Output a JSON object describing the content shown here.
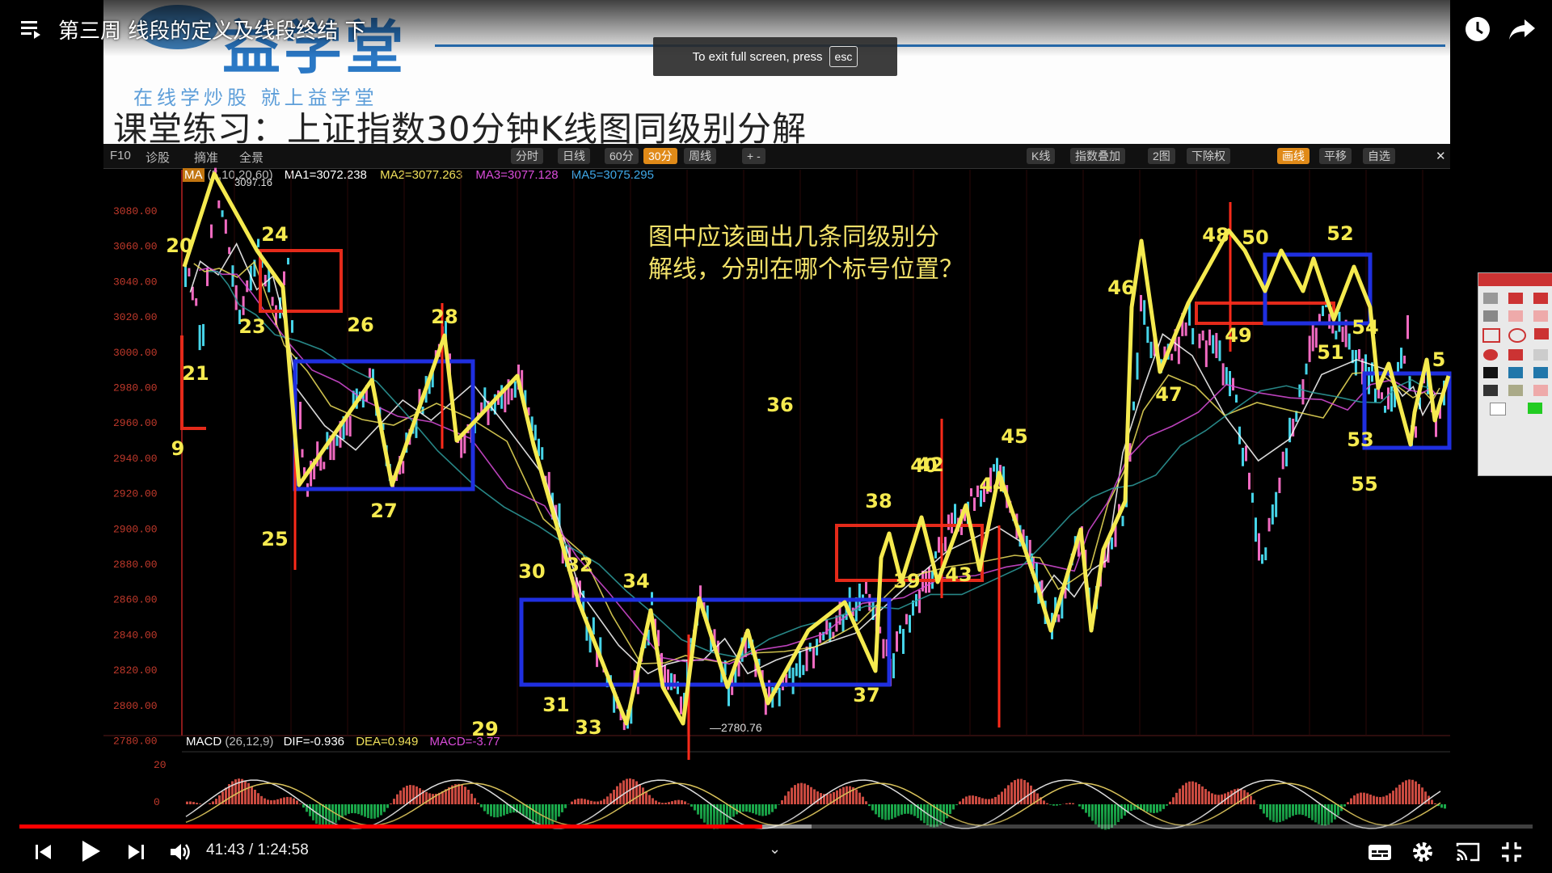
{
  "video": {
    "title": "第三周 线段的定义及线段终结 下",
    "fullscreen_tip": "To exit full screen, press",
    "esc_key": "esc",
    "current_time": "41:43",
    "separator": " / ",
    "duration": "1:24:58",
    "progress": 0.4909,
    "buffered": 0.5234,
    "accent": "#ff0000"
  },
  "slide": {
    "logo_text": "益学堂",
    "slogan": "在线学炒股  就上益学堂",
    "title": "课堂练习：上证指数30分钟K线图同级别分解",
    "question": [
      "图中应该画出几条同级别分",
      "解线，分别在哪个标号位置？"
    ]
  },
  "toolbar": {
    "left": [
      "F10",
      "诊股",
      "摘准",
      "全景"
    ],
    "periods": [
      "分时",
      "日线",
      "60分",
      "30分",
      "周线"
    ],
    "active_period": "30分",
    "right": [
      "K线",
      "指数叠加",
      "2图",
      "下除权",
      "画线",
      "平移",
      "自选"
    ]
  },
  "indicators": {
    "ma_label": "MA",
    "ma_params": "(5,10,20,60)",
    "ma1": "MA1=3072.238",
    "ma2": "MA2=3077.263",
    "ma3": "MA3=3077.128",
    "ma5": "MA5=3075.295",
    "high_label": "3097.16",
    "low_label": "2780.76",
    "macd_label": "MACD",
    "macd_params": "(26,12,9)",
    "dif": "DIF=-0.936",
    "dea": "DEA=0.949",
    "macd": "MACD=-3.77"
  },
  "y_axis": [
    "3080.00",
    "3060.00",
    "3040.00",
    "3020.00",
    "3000.00",
    "2980.00",
    "2960.00",
    "2940.00",
    "2920.00",
    "2900.00",
    "2880.00",
    "2860.00",
    "2840.00",
    "2820.00",
    "2800.00",
    "2780.00"
  ],
  "macd_axis": [
    "20",
    "0"
  ],
  "pivot_labels": [
    "20",
    "21",
    "9",
    "23",
    "24",
    "25",
    "26",
    "27",
    "28",
    "29",
    "30",
    "31",
    "32",
    "33",
    "34",
    "36",
    "37",
    "38",
    "39",
    "40",
    "42",
    "43",
    "44",
    "45",
    "46",
    "47",
    "48",
    "49",
    "50",
    "51",
    "52",
    "53",
    "54",
    "55",
    "5"
  ],
  "colors": {
    "segment": "#f5ea4f",
    "box_red": "#e52a1a",
    "box_blue": "#1f2fe0",
    "divider_red": "#ff2a1a",
    "axis_text": "#c0392b"
  }
}
